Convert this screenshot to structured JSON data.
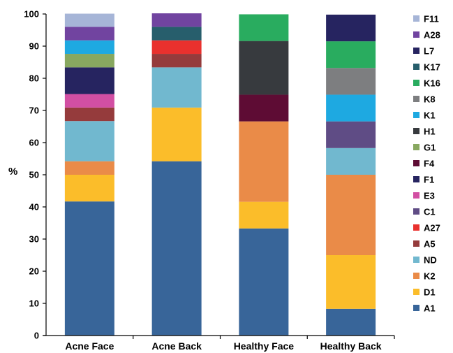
{
  "chart_data": {
    "type": "bar",
    "stacked": true,
    "ylabel": "%",
    "ylim": [
      0,
      100
    ],
    "yticks": [
      0,
      10,
      20,
      30,
      40,
      50,
      60,
      70,
      80,
      90,
      100
    ],
    "categories": [
      "Acne Face",
      "Acne Back",
      "Healthy Face",
      "Healthy Back"
    ],
    "legend_position": "right",
    "series": [
      {
        "name": "A1",
        "color": "#386599",
        "values": [
          41.7,
          54.2,
          33.3,
          8.3
        ]
      },
      {
        "name": "D1",
        "color": "#fbbd2a",
        "values": [
          8.3,
          16.7,
          8.3,
          16.7
        ]
      },
      {
        "name": "K2",
        "color": "#ea8b48",
        "values": [
          4.2,
          0,
          25.0,
          25.0
        ]
      },
      {
        "name": "ND",
        "color": "#71b8cf",
        "values": [
          12.5,
          12.5,
          0,
          8.3
        ]
      },
      {
        "name": "A5",
        "color": "#953b3c",
        "values": [
          4.2,
          4.2,
          0,
          0
        ]
      },
      {
        "name": "A27",
        "color": "#e9312e",
        "values": [
          0,
          4.2,
          0,
          0
        ]
      },
      {
        "name": "C1",
        "color": "#5f4c85",
        "values": [
          0,
          0,
          0,
          8.3
        ]
      },
      {
        "name": "E3",
        "color": "#d24fa3",
        "values": [
          4.2,
          0,
          0,
          0
        ]
      },
      {
        "name": "F1",
        "color": "#262460",
        "values": [
          8.3,
          0,
          0,
          0
        ]
      },
      {
        "name": "F4",
        "color": "#5e0c34",
        "values": [
          0,
          0,
          8.3,
          0
        ]
      },
      {
        "name": "G1",
        "color": "#88a860",
        "values": [
          4.2,
          0,
          0,
          0
        ]
      },
      {
        "name": "H1",
        "color": "#373a3e",
        "values": [
          0,
          0,
          16.7,
          0
        ]
      },
      {
        "name": "K1",
        "color": "#1ea9e1",
        "values": [
          4.2,
          0,
          0,
          8.3
        ]
      },
      {
        "name": "K8",
        "color": "#7d7e80",
        "values": [
          0,
          0,
          0,
          8.3
        ]
      },
      {
        "name": "K16",
        "color": "#29ac5f",
        "values": [
          0,
          0,
          8.3,
          8.3
        ]
      },
      {
        "name": "K17",
        "color": "#275e6c",
        "values": [
          0,
          4.2,
          0,
          0
        ]
      },
      {
        "name": "L7",
        "color": "#262460",
        "values": [
          0,
          0,
          0,
          8.3
        ]
      },
      {
        "name": "A28",
        "color": "#7144a0",
        "values": [
          4.2,
          4.2,
          0,
          0
        ]
      },
      {
        "name": "F11",
        "color": "#a6b5d7",
        "values": [
          4.1,
          0,
          0,
          0
        ]
      }
    ]
  }
}
